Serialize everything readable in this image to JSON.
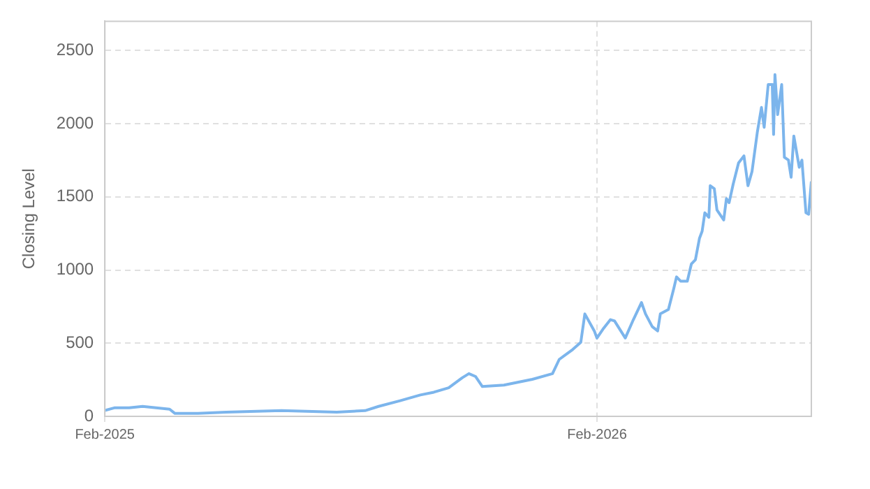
{
  "chart_data": {
    "type": "line",
    "ylabel": "Closing Level",
    "x": [
      "2025-02-01",
      "2025-02-08",
      "2025-02-19",
      "2025-03-01",
      "2025-03-11",
      "2025-03-21",
      "2025-03-25",
      "2025-04-11",
      "2025-05-02",
      "2025-06-12",
      "2025-07-23",
      "2025-08-13",
      "2025-08-23",
      "2025-09-08",
      "2025-09-23",
      "2025-10-03",
      "2025-10-14",
      "2025-10-24",
      "2025-10-29",
      "2025-11-03",
      "2025-11-08",
      "2025-11-24",
      "2025-12-15",
      "2025-12-30",
      "2026-01-04",
      "2026-01-14",
      "2026-01-20",
      "2026-01-23",
      "2026-01-30",
      "2026-02-01",
      "2026-02-06",
      "2026-02-11",
      "2026-02-14",
      "2026-02-22",
      "2026-02-28",
      "2026-03-06",
      "2026-03-09",
      "2026-03-14",
      "2026-03-18",
      "2026-03-20",
      "2026-03-26",
      "2026-03-30",
      "2026-04-01",
      "2026-04-04",
      "2026-04-09",
      "2026-04-12",
      "2026-04-15",
      "2026-04-18",
      "2026-04-20",
      "2026-04-22",
      "2026-04-25",
      "2026-04-26",
      "2026-04-29",
      "2026-05-01",
      "2026-05-06",
      "2026-05-08",
      "2026-05-10",
      "2026-05-13",
      "2026-05-17",
      "2026-05-21",
      "2026-05-24",
      "2026-05-27",
      "2026-05-31",
      "2026-06-03",
      "2026-06-05",
      "2026-06-08",
      "2026-06-11",
      "2026-06-12",
      "2026-06-13",
      "2026-06-15",
      "2026-06-18",
      "2026-06-20",
      "2026-06-23",
      "2026-06-25",
      "2026-06-27",
      "2026-07-01",
      "2026-07-03",
      "2026-07-06",
      "2026-07-08",
      "2026-07-10"
    ],
    "series": [
      {
        "color": "#7cb5ec",
        "values": [
          40,
          58,
          58,
          68,
          58,
          49,
          20,
          20,
          29,
          39,
          29,
          39,
          68,
          107,
          146,
          165,
          195,
          263,
          292,
          272,
          204,
          214,
          253,
          292,
          389,
          457,
          506,
          700,
          584,
          535,
          603,
          661,
          652,
          535,
          661,
          778,
          700,
          613,
          584,
          700,
          730,
          875,
          953,
          924,
          924,
          1041,
          1070,
          1216,
          1265,
          1391,
          1360,
          1576,
          1556,
          1410,
          1342,
          1488,
          1460,
          1586,
          1732,
          1780,
          1576,
          1673,
          1946,
          2111,
          1975,
          2267,
          2267,
          1926,
          2335,
          2062,
          2267,
          1770,
          1751,
          1634,
          1916,
          1702,
          1751,
          1391,
          1381,
          1605
        ]
      }
    ],
    "xlim": [
      "2025-02-01",
      "2026-07-10"
    ],
    "xticks": [
      {
        "value": "2025-02-01",
        "label": "Feb-2025"
      },
      {
        "value": "2026-02-01",
        "label": "Feb-2026"
      }
    ],
    "ylim": [
      0,
      2700
    ],
    "yticks": [
      0,
      500,
      1000,
      1500,
      2000,
      2500
    ],
    "grid": true,
    "marker": "none",
    "line_style": "solid"
  }
}
